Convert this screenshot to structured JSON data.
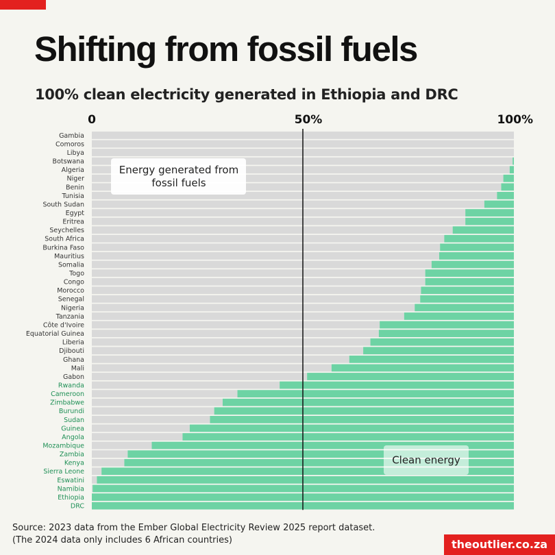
{
  "header": {
    "title": "Shifting from fossil fuels",
    "subtitle": "100% clean electricity generated in Ethiopia and DRC"
  },
  "footer": {
    "source_line1": "Source: 2023 data from the Ember Global Electricity Review 2025 report dataset.",
    "source_line2": "(The 2024 data only includes 6 African countries)",
    "brand": "theoutlier.co.za"
  },
  "colors": {
    "accent_red": "#e3211f",
    "clean": "#6dd3a4",
    "fossil": "#d9d9d9",
    "label_green": "#1e8f55",
    "background": "#f5f5f0"
  },
  "chart_data": {
    "type": "bar",
    "orientation": "horizontal-stacked",
    "x_ticks": [
      "0",
      "50%",
      "100%"
    ],
    "xlim": [
      0,
      100
    ],
    "series": [
      {
        "name": "Energy generated from fossil fuels",
        "color": "#d9d9d9"
      },
      {
        "name": "Clean energy",
        "color": "#6dd3a4"
      }
    ],
    "annotations": [
      {
        "text_lines": [
          "Energy generated from",
          "fossil fuels"
        ]
      },
      {
        "text_lines": [
          "Clean energy"
        ]
      }
    ],
    "categories": [
      "Gambia",
      "Comoros",
      "Libya",
      "Botswana",
      "Algeria",
      "Niger",
      "Benin",
      "Tunisia",
      "South Sudan",
      "Egypt",
      "Eritrea",
      "Seychelles",
      "South Africa",
      "Burkina Faso",
      "Mauritius",
      "Somalia",
      "Togo",
      "Congo",
      "Morocco",
      "Senegal",
      "Nigeria",
      "Tanzania",
      "Côte d'Ivoire",
      "Equatorial Guinea",
      "Liberia",
      "Djibouti",
      "Ghana",
      "Mali",
      "Gabon",
      "Rwanda",
      "Cameroon",
      "Zimbabwe",
      "Burundi",
      "Sudan",
      "Guinea",
      "Angola",
      "Mozambique",
      "Zambia",
      "Kenya",
      "Sierra Leone",
      "Eswatini",
      "Namibia",
      "Ethiopia",
      "DRC"
    ],
    "clean_share": [
      0,
      0,
      0,
      0.3,
      1,
      2.5,
      3,
      4,
      7,
      11.5,
      11.5,
      14.5,
      16.5,
      17.5,
      17.7,
      19.5,
      21,
      21,
      22,
      22.2,
      23.5,
      26,
      31.8,
      32,
      34,
      35.7,
      39,
      43.2,
      49,
      55.5,
      65.5,
      69,
      71,
      72,
      76.8,
      78.5,
      85.8,
      91.5,
      92.3,
      97.7,
      98.8,
      99.8,
      100,
      100
    ],
    "highlighted_from": "Rwanda"
  }
}
